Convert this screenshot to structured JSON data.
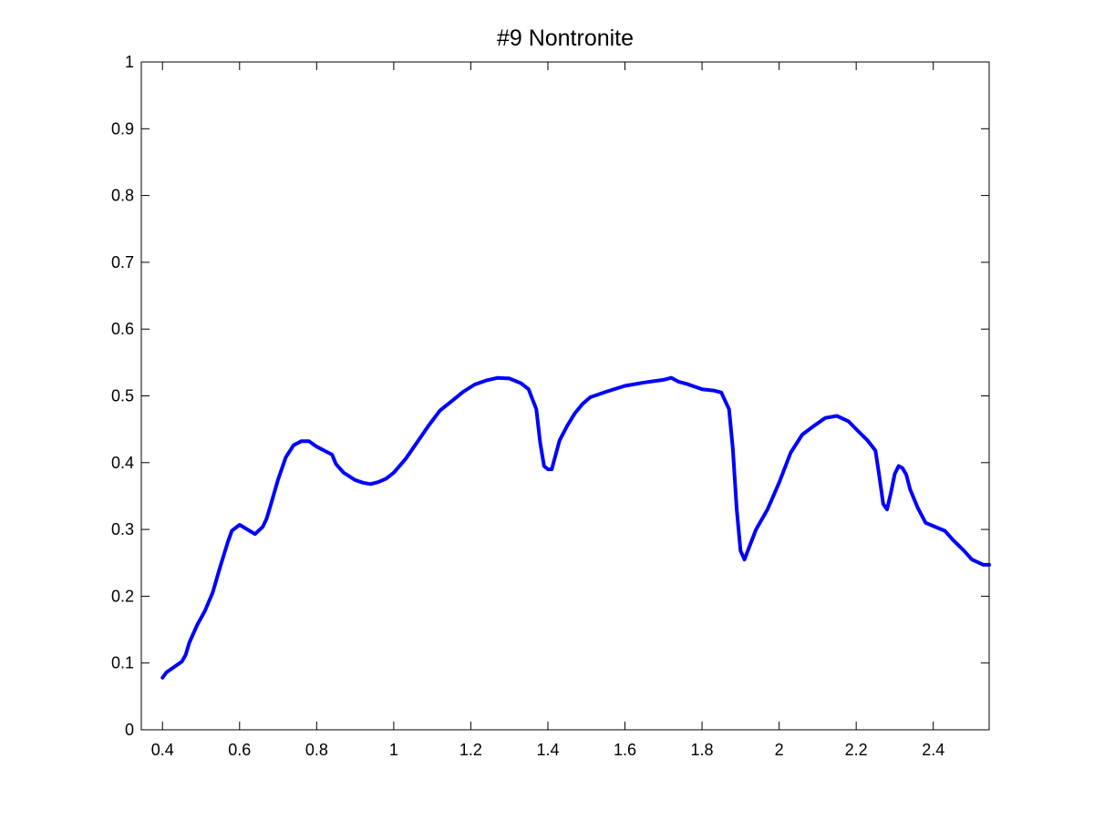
{
  "chart_data": {
    "type": "line",
    "title": "#9 Nontronite",
    "xlabel": "",
    "ylabel": "",
    "xlim": [
      0.345,
      2.545
    ],
    "ylim": [
      0,
      1
    ],
    "grid": false,
    "x_ticks": [
      0.4,
      0.6,
      0.8,
      1,
      1.2,
      1.4,
      1.6,
      1.8,
      2,
      2.2,
      2.4
    ],
    "x_tick_labels": [
      "0.4",
      "0.6",
      "0.8",
      "1",
      "1.2",
      "1.4",
      "1.6",
      "1.8",
      "2",
      "2.2",
      "2.4"
    ],
    "y_ticks": [
      0,
      0.1,
      0.2,
      0.3,
      0.4,
      0.5,
      0.6,
      0.7,
      0.8,
      0.9,
      1
    ],
    "y_tick_labels": [
      "0",
      "0.1",
      "0.2",
      "0.3",
      "0.4",
      "0.5",
      "0.6",
      "0.7",
      "0.8",
      "0.9",
      "1"
    ],
    "series": [
      {
        "color": "#0000ff",
        "x": [
          0.4,
          0.41,
          0.43,
          0.45,
          0.46,
          0.47,
          0.49,
          0.51,
          0.53,
          0.55,
          0.57,
          0.58,
          0.6,
          0.62,
          0.64,
          0.66,
          0.67,
          0.68,
          0.7,
          0.72,
          0.74,
          0.76,
          0.78,
          0.8,
          0.82,
          0.84,
          0.85,
          0.87,
          0.9,
          0.92,
          0.94,
          0.96,
          0.98,
          1.0,
          1.03,
          1.06,
          1.09,
          1.12,
          1.15,
          1.18,
          1.21,
          1.24,
          1.27,
          1.3,
          1.33,
          1.35,
          1.37,
          1.38,
          1.39,
          1.4,
          1.41,
          1.43,
          1.45,
          1.47,
          1.49,
          1.51,
          1.55,
          1.6,
          1.65,
          1.7,
          1.72,
          1.74,
          1.76,
          1.8,
          1.83,
          1.85,
          1.87,
          1.88,
          1.89,
          1.9,
          1.91,
          1.92,
          1.94,
          1.97,
          2.0,
          2.03,
          2.06,
          2.09,
          2.12,
          2.15,
          2.18,
          2.2,
          2.23,
          2.25,
          2.26,
          2.27,
          2.28,
          2.29,
          2.3,
          2.31,
          2.32,
          2.33,
          2.34,
          2.36,
          2.38,
          2.4,
          2.43,
          2.45,
          2.48,
          2.5,
          2.53,
          2.545
        ],
        "y": [
          0.078,
          0.086,
          0.094,
          0.102,
          0.112,
          0.131,
          0.157,
          0.178,
          0.205,
          0.245,
          0.282,
          0.298,
          0.307,
          0.3,
          0.293,
          0.304,
          0.316,
          0.335,
          0.375,
          0.408,
          0.426,
          0.432,
          0.432,
          0.424,
          0.418,
          0.412,
          0.398,
          0.385,
          0.374,
          0.37,
          0.368,
          0.371,
          0.376,
          0.385,
          0.405,
          0.43,
          0.455,
          0.478,
          0.492,
          0.506,
          0.517,
          0.523,
          0.527,
          0.526,
          0.519,
          0.51,
          0.48,
          0.43,
          0.395,
          0.39,
          0.39,
          0.433,
          0.455,
          0.474,
          0.488,
          0.498,
          0.506,
          0.515,
          0.52,
          0.524,
          0.527,
          0.521,
          0.518,
          0.51,
          0.508,
          0.505,
          0.48,
          0.42,
          0.33,
          0.268,
          0.255,
          0.27,
          0.3,
          0.33,
          0.37,
          0.415,
          0.442,
          0.455,
          0.467,
          0.47,
          0.462,
          0.45,
          0.433,
          0.418,
          0.38,
          0.338,
          0.33,
          0.355,
          0.383,
          0.395,
          0.392,
          0.382,
          0.36,
          0.332,
          0.31,
          0.305,
          0.298,
          0.285,
          0.268,
          0.255,
          0.247,
          0.247
        ]
      }
    ]
  }
}
